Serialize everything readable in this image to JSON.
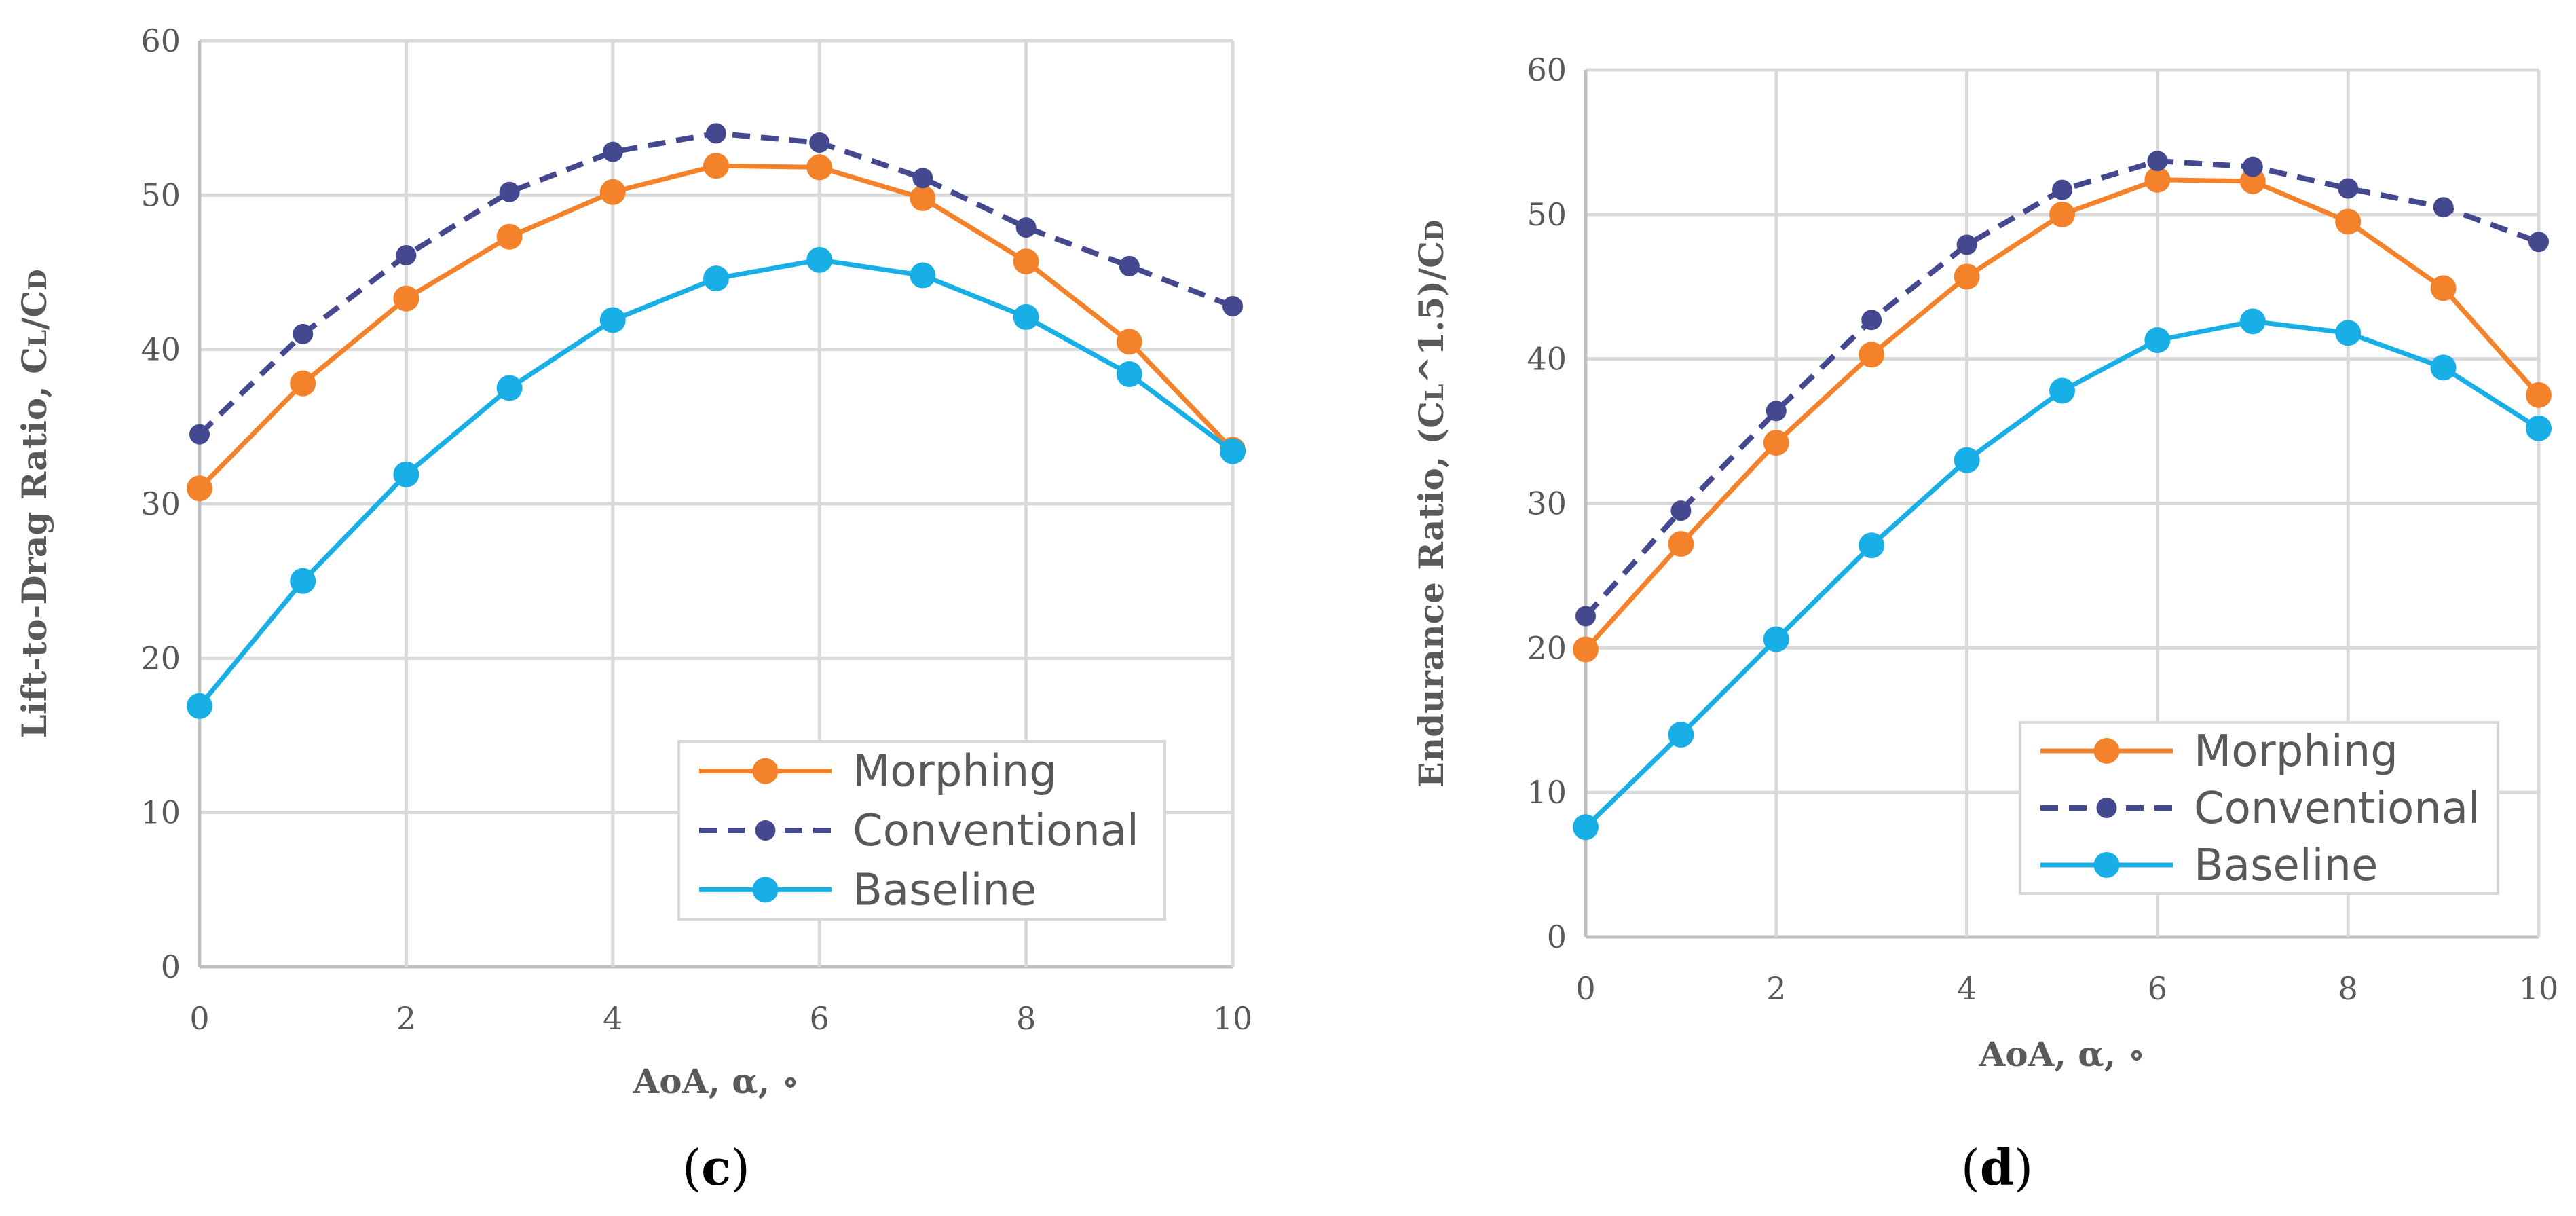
{
  "chart_data": [
    {
      "type": "line",
      "panel_label": "c",
      "xlabel": "AoA, α, ∘",
      "ylabel": "Lift-to-Drag Ratio, CL/CD",
      "ylabel_parts": {
        "prefix": "Lift-to-Drag Ratio, C",
        "sub1": "L",
        "mid": "/C",
        "sub2": "D"
      },
      "x": [
        0,
        1,
        2,
        3,
        4,
        5,
        6,
        7,
        8,
        9,
        10
      ],
      "xlim": [
        0,
        10
      ],
      "ylim": [
        0,
        60
      ],
      "xticks": [
        0,
        2,
        4,
        6,
        8,
        10
      ],
      "yticks": [
        0,
        10,
        20,
        30,
        40,
        50,
        60
      ],
      "grid": true,
      "legend_position": "bottom-right",
      "series": [
        {
          "name": "Morphing",
          "color": "#f4822a",
          "dashed": false,
          "marker_size": "large",
          "values": [
            31.0,
            37.8,
            43.3,
            47.3,
            50.2,
            51.9,
            51.8,
            49.8,
            45.7,
            40.5,
            33.5
          ]
        },
        {
          "name": "Conventional",
          "color": "#44488f",
          "dashed": true,
          "marker_size": "small",
          "values": [
            34.5,
            41.0,
            46.1,
            50.2,
            52.8,
            54.0,
            53.4,
            51.1,
            47.9,
            45.4,
            42.8
          ]
        },
        {
          "name": "Baseline",
          "color": "#18aee6",
          "dashed": false,
          "marker_size": "large",
          "values": [
            16.9,
            25.0,
            31.9,
            37.5,
            41.9,
            44.6,
            45.8,
            44.8,
            42.1,
            38.4,
            33.4
          ]
        }
      ]
    },
    {
      "type": "line",
      "panel_label": "d",
      "xlabel": "AoA, α, ∘",
      "ylabel": "Endurance Ratio, (CL^1.5)/CD",
      "ylabel_parts": {
        "prefix": "Endurance Ratio, (C",
        "sub1": "L",
        "mid": "^1.5)/C",
        "sub2": "D"
      },
      "x": [
        0,
        1,
        2,
        3,
        4,
        5,
        6,
        7,
        8,
        9,
        10
      ],
      "xlim": [
        0,
        10
      ],
      "ylim": [
        0,
        60
      ],
      "xticks": [
        0,
        2,
        4,
        6,
        8,
        10
      ],
      "yticks": [
        0,
        10,
        20,
        30,
        40,
        50,
        60
      ],
      "grid": true,
      "legend_position": "bottom-right",
      "series": [
        {
          "name": "Morphing",
          "color": "#f4822a",
          "dashed": false,
          "marker_size": "large",
          "values": [
            19.9,
            27.2,
            34.2,
            40.3,
            45.7,
            50.0,
            52.4,
            52.3,
            49.5,
            44.9,
            37.5
          ]
        },
        {
          "name": "Conventional",
          "color": "#44488f",
          "dashed": true,
          "marker_size": "small",
          "values": [
            22.2,
            29.5,
            36.4,
            42.7,
            47.9,
            51.7,
            53.7,
            53.3,
            51.8,
            50.5,
            48.1
          ]
        },
        {
          "name": "Baseline",
          "color": "#18aee6",
          "dashed": false,
          "marker_size": "large",
          "values": [
            7.6,
            14.0,
            20.6,
            27.1,
            33.0,
            37.8,
            41.3,
            42.6,
            41.8,
            39.4,
            35.2
          ]
        }
      ]
    }
  ]
}
